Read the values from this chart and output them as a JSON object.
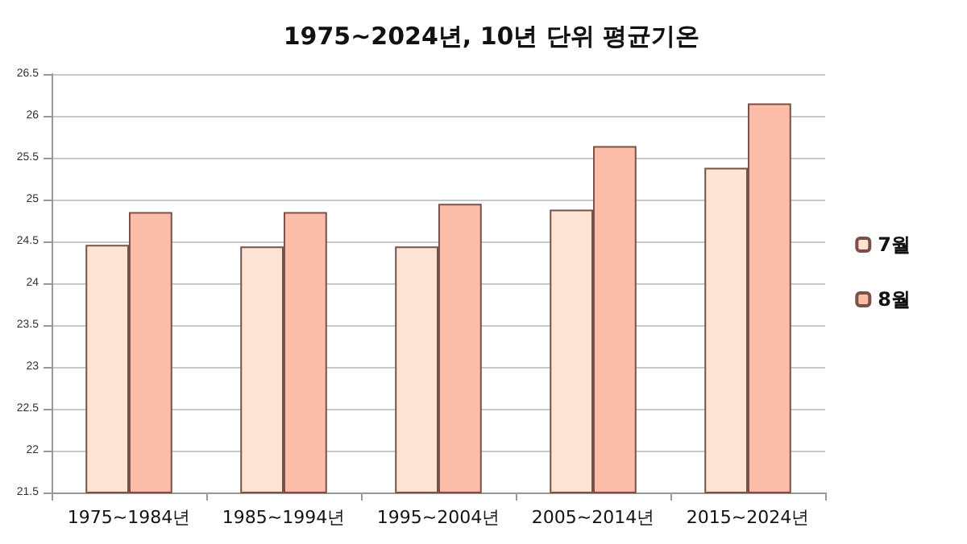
{
  "chart_data": {
    "type": "bar",
    "title": "1975~2024년, 10년 단위 평균기온",
    "categories": [
      "1975~1984년",
      "1985~1994년",
      "1995~2004년",
      "2005~2014년",
      "2015~2024년"
    ],
    "series": [
      {
        "name": "7월",
        "color": "#fde4d5",
        "values": [
          24.46,
          24.44,
          24.44,
          24.88,
          25.38
        ]
      },
      {
        "name": "8월",
        "color": "#fbbda7",
        "values": [
          24.85,
          24.85,
          24.95,
          25.64,
          26.15
        ]
      }
    ],
    "ylim": [
      21.5,
      26.5
    ],
    "yticks": [
      21.5,
      22,
      22.5,
      23,
      23.5,
      24,
      24.5,
      25,
      25.5,
      26,
      26.5
    ],
    "grid": "y",
    "legend": "right"
  }
}
